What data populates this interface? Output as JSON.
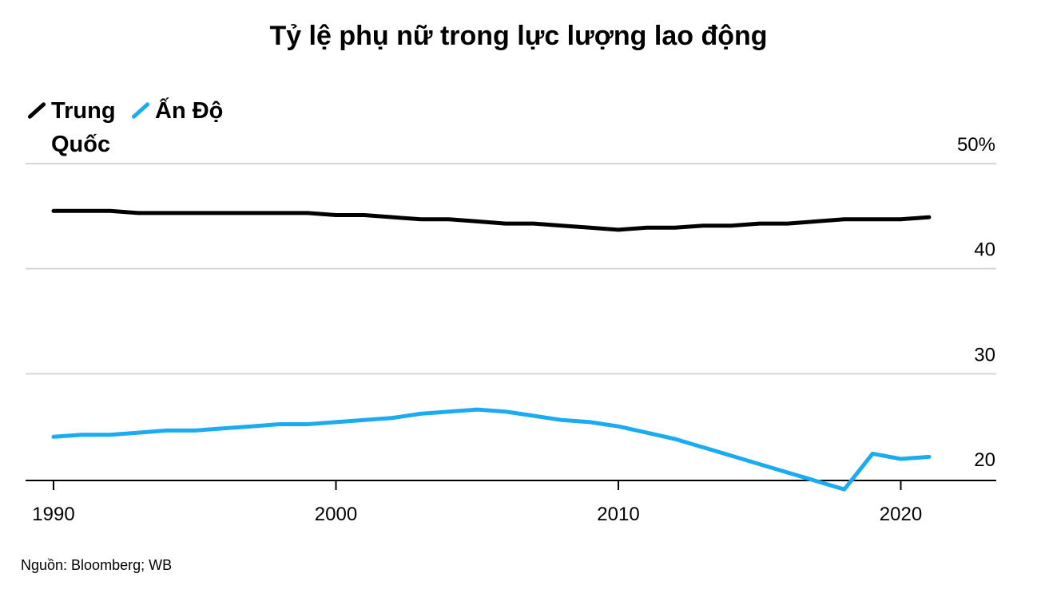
{
  "chart_data": {
    "type": "line",
    "title": "Tỷ lệ phụ nữ trong lực lượng lao động",
    "xlabel": "",
    "ylabel": "",
    "xlim": [
      1989,
      2024
    ],
    "ylim": [
      19,
      50
    ],
    "x_ticks": [
      {
        "value": 1990,
        "label": "1990"
      },
      {
        "value": 2000,
        "label": "2000"
      },
      {
        "value": 2010,
        "label": "2010"
      },
      {
        "value": 2020,
        "label": "2020"
      }
    ],
    "y_ticks": [
      {
        "value": 50,
        "label": "50%"
      },
      {
        "value": 40,
        "label": "40"
      },
      {
        "value": 30,
        "label": "30"
      },
      {
        "value": 20,
        "label": "20"
      }
    ],
    "grid": true,
    "legend_position": "top-left",
    "x": [
      1990,
      1991,
      1992,
      1993,
      1994,
      1995,
      1996,
      1997,
      1998,
      1999,
      2000,
      2001,
      2002,
      2003,
      2004,
      2005,
      2006,
      2007,
      2008,
      2009,
      2010,
      2011,
      2012,
      2013,
      2014,
      2015,
      2016,
      2017,
      2018,
      2019,
      2020,
      2021
    ],
    "series": [
      {
        "name": "Trung Quốc",
        "color": "#000000",
        "values": [
          45.5,
          45.5,
          45.5,
          45.3,
          45.3,
          45.3,
          45.3,
          45.3,
          45.3,
          45.3,
          45.1,
          45.1,
          44.9,
          44.7,
          44.7,
          44.5,
          44.3,
          44.3,
          44.1,
          43.9,
          43.7,
          43.9,
          43.9,
          44.1,
          44.1,
          44.3,
          44.3,
          44.5,
          44.7,
          44.7,
          44.7,
          44.9
        ]
      },
      {
        "name": "Ấn Độ",
        "color": "#1aabf0",
        "values": [
          24.0,
          24.2,
          24.2,
          24.4,
          24.6,
          24.6,
          24.8,
          25.0,
          25.2,
          25.2,
          25.4,
          25.6,
          25.8,
          26.2,
          26.4,
          26.6,
          26.4,
          26.0,
          25.6,
          25.4,
          25.0,
          24.4,
          23.8,
          23.0,
          22.2,
          21.4,
          20.6,
          19.8,
          19.0,
          22.4,
          21.9,
          22.1
        ]
      }
    ]
  },
  "source": "Nguồn: Bloomberg; WB"
}
